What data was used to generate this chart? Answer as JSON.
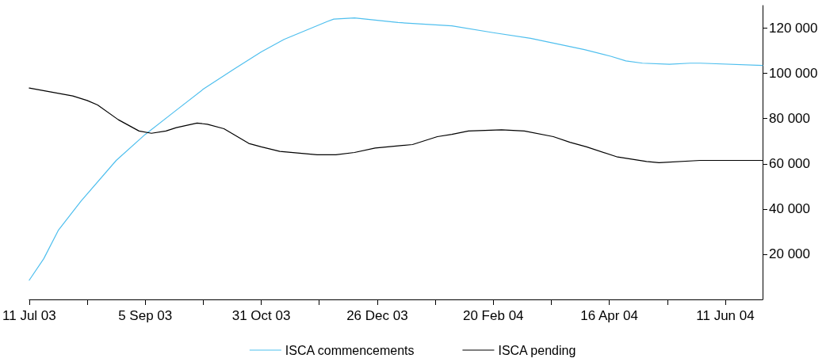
{
  "chart_data": {
    "type": "line",
    "legend": "bottom",
    "grid": false,
    "marker": "none",
    "line_style": "solid",
    "xlim": [
      "2003-07-11",
      "2004-06-29"
    ],
    "xticks": [
      {
        "value": "2003-07-11",
        "label": "11 Jul 03"
      },
      {
        "value": "2003-08-08",
        "label": null
      },
      {
        "value": "2003-09-05",
        "label": "5 Sep 03"
      },
      {
        "value": "2003-10-03",
        "label": null
      },
      {
        "value": "2003-10-31",
        "label": "31 Oct 03"
      },
      {
        "value": "2003-11-28",
        "label": null
      },
      {
        "value": "2003-12-26",
        "label": "26 Dec 03"
      },
      {
        "value": "2004-01-23",
        "label": null
      },
      {
        "value": "2004-02-20",
        "label": "20 Feb 04"
      },
      {
        "value": "2004-03-19",
        "label": null
      },
      {
        "value": "2004-04-16",
        "label": "16 Apr 04"
      },
      {
        "value": "2004-05-14",
        "label": null
      },
      {
        "value": "2004-06-11",
        "label": "11 Jun 04"
      }
    ],
    "ylim": [
      0,
      130000
    ],
    "yticks": [
      {
        "value": 20000,
        "label": "20 000"
      },
      {
        "value": 40000,
        "label": "40 000"
      },
      {
        "value": 60000,
        "label": "60 000"
      },
      {
        "value": 80000,
        "label": "80 000"
      },
      {
        "value": 100000,
        "label": "100 000"
      },
      {
        "value": 120000,
        "label": "120 000"
      }
    ],
    "series": [
      {
        "name": "ISCA commencements",
        "color": "#4fbfee",
        "x": [
          "2003-07-11",
          "2003-07-18",
          "2003-07-25",
          "2003-08-05",
          "2003-08-22",
          "2003-09-05",
          "2003-09-19",
          "2003-10-03",
          "2003-10-18",
          "2003-10-31",
          "2003-11-11",
          "2003-12-02",
          "2003-12-05",
          "2003-12-15",
          "2004-01-05",
          "2004-01-31",
          "2004-02-20",
          "2004-03-09",
          "2004-04-04",
          "2004-04-17",
          "2004-04-24",
          "2004-05-02",
          "2004-05-15",
          "2004-05-25",
          "2004-05-30",
          "2004-06-29"
        ],
        "values": [
          8500,
          18000,
          30500,
          43500,
          61500,
          73000,
          83000,
          93000,
          102000,
          109500,
          115000,
          123000,
          124000,
          124500,
          122500,
          121000,
          118000,
          115500,
          110500,
          107500,
          105500,
          104500,
          104000,
          104500,
          104500,
          103500
        ]
      },
      {
        "name": "ISCA pending",
        "color": "#000000",
        "x": [
          "2003-07-11",
          "2003-08-01",
          "2003-08-08",
          "2003-08-13",
          "2003-08-23",
          "2003-09-02",
          "2003-09-08",
          "2003-09-15",
          "2003-09-20",
          "2003-09-30",
          "2003-10-05",
          "2003-10-13",
          "2003-10-25",
          "2003-10-31",
          "2003-11-09",
          "2003-11-27",
          "2003-12-06",
          "2003-12-15",
          "2003-12-25",
          "2004-01-12",
          "2004-01-24",
          "2004-01-31",
          "2004-02-08",
          "2004-02-24",
          "2004-03-06",
          "2004-03-20",
          "2004-03-28",
          "2004-04-05",
          "2004-04-20",
          "2004-05-04",
          "2004-05-10",
          "2004-05-30",
          "2004-06-14",
          "2004-06-29"
        ],
        "values": [
          93500,
          90000,
          88000,
          86000,
          79500,
          74500,
          73500,
          74500,
          76000,
          78000,
          77500,
          75500,
          69000,
          67500,
          65500,
          64000,
          64000,
          65000,
          67000,
          68500,
          72000,
          73000,
          74500,
          75000,
          74500,
          72000,
          69500,
          67500,
          63000,
          61000,
          60500,
          61500,
          61500,
          61500
        ]
      }
    ]
  }
}
